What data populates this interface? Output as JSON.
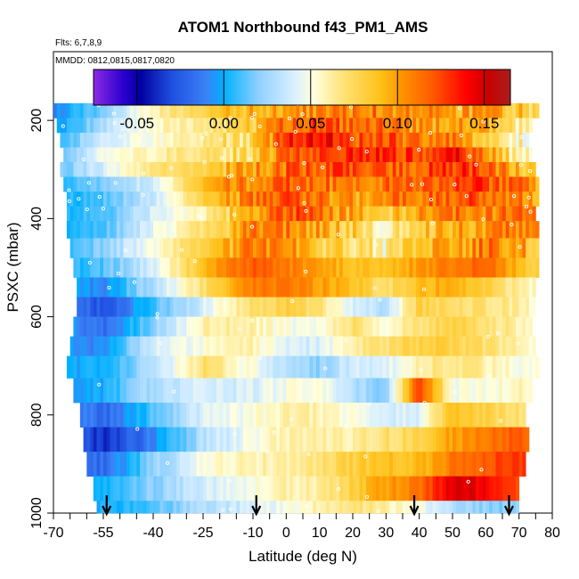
{
  "chart_data": {
    "type": "heatmap",
    "title": "ATOM1 Northbound f43_PM1_AMS",
    "flights_label": "Flts: 6,7,8,9",
    "dates_label": "MMDD: 0812,0815,0817,0820",
    "xlabel": "Latitude (deg N)",
    "ylabel": "PSXC (mbar)",
    "xlim": [
      -70,
      80
    ],
    "ylim": [
      1000,
      60
    ],
    "x_tick_labels": [
      "-70",
      "-55",
      "-40",
      "-25",
      "-10",
      "0",
      "10",
      "20",
      "30",
      "40",
      "50",
      "60",
      "70",
      "80"
    ],
    "x_tick_values": [
      -70,
      -55,
      -40,
      -25,
      -10,
      0,
      10,
      20,
      30,
      40,
      50,
      60,
      70,
      80
    ],
    "x_minor_ticks": [
      -65,
      -60,
      -50,
      -45,
      -35,
      -30,
      -20,
      -15,
      -5,
      5,
      15,
      25,
      35,
      45,
      55,
      65,
      75
    ],
    "y_tick_labels": [
      "200",
      "400",
      "600",
      "800",
      "1000"
    ],
    "y_tick_values": [
      200,
      400,
      600,
      800,
      1000
    ],
    "colorbar": {
      "range": [
        -0.075,
        0.165
      ],
      "tick_values": [
        -0.05,
        0.0,
        0.05,
        0.1,
        0.15
      ],
      "tick_labels": [
        "-0.05",
        "0.00",
        "0.05",
        "0.10",
        "0.15"
      ],
      "color_stops": [
        {
          "v": -0.075,
          "c": "#8b2be2"
        },
        {
          "v": -0.058,
          "c": "#2b00d0"
        },
        {
          "v": -0.048,
          "c": "#0000a0"
        },
        {
          "v": -0.03,
          "c": "#1f4fe0"
        },
        {
          "v": -0.01,
          "c": "#3b82f6"
        },
        {
          "v": 0.0,
          "c": "#00b0ff"
        },
        {
          "v": 0.02,
          "c": "#8fd0ff"
        },
        {
          "v": 0.04,
          "c": "#d8efff"
        },
        {
          "v": 0.052,
          "c": "#ffffdd"
        },
        {
          "v": 0.07,
          "c": "#ffe070"
        },
        {
          "v": 0.09,
          "c": "#ffc21a"
        },
        {
          "v": 0.102,
          "c": "#ff9500"
        },
        {
          "v": 0.12,
          "c": "#ff5a00"
        },
        {
          "v": 0.14,
          "c": "#ff0000"
        },
        {
          "v": 0.152,
          "c": "#c80000"
        },
        {
          "v": 0.165,
          "c": "#aa1e1e"
        }
      ]
    },
    "pressure_levels": [
      180,
      210,
      240,
      270,
      300,
      330,
      360,
      390,
      420,
      460,
      500,
      540,
      580,
      620,
      660,
      700,
      750,
      800,
      850,
      900,
      950,
      1000
    ],
    "left_edge_lat": [
      -70,
      -69,
      -68,
      -67,
      -68,
      -67,
      -66,
      -66,
      -66,
      -65,
      -64,
      -63,
      -63,
      -64,
      -65,
      -66,
      -64,
      -62,
      -61,
      -60,
      -58,
      -57
    ],
    "right_edge_lat": [
      76,
      74,
      73,
      74,
      75,
      76,
      76,
      75,
      76,
      76,
      76,
      75,
      75,
      74,
      75,
      76,
      74,
      72,
      73,
      72,
      70,
      70
    ],
    "profile_markers_lat": [
      -54,
      -9,
      38.5,
      67
    ],
    "anchor_lat": [
      -70,
      -55,
      -40,
      -25,
      -10,
      0,
      10,
      20,
      30,
      40,
      50,
      60,
      70,
      80
    ],
    "values_by_level": [
      [
        -0.01,
        0.02,
        0.06,
        0.08,
        0.09,
        0.1,
        0.105,
        0.11,
        0.11,
        0.105,
        0.1,
        0.095,
        0.085,
        0.07
      ],
      [
        -0.01,
        0.03,
        0.055,
        0.065,
        0.08,
        0.115,
        0.125,
        0.11,
        0.11,
        0.1,
        0.1,
        0.09,
        0.06,
        0.05
      ],
      [
        0.0,
        0.04,
        0.05,
        0.065,
        0.075,
        0.13,
        0.145,
        0.12,
        0.12,
        0.11,
        0.105,
        0.085,
        0.06,
        0.05
      ],
      [
        0.0,
        0.05,
        0.06,
        0.07,
        0.08,
        0.12,
        0.13,
        0.13,
        0.13,
        0.125,
        0.14,
        0.1,
        0.06,
        0.05
      ],
      [
        0.01,
        0.04,
        0.07,
        0.08,
        0.1,
        0.115,
        0.125,
        0.12,
        0.115,
        0.12,
        0.13,
        0.12,
        0.09,
        0.06
      ],
      [
        0.0,
        0.02,
        0.04,
        0.09,
        0.11,
        0.12,
        0.115,
        0.105,
        0.11,
        0.12,
        0.125,
        0.125,
        0.11,
        0.08
      ],
      [
        0.0,
        0.01,
        0.035,
        0.08,
        0.11,
        0.12,
        0.11,
        0.1,
        0.105,
        0.115,
        0.12,
        0.12,
        0.11,
        0.08
      ],
      [
        0.0,
        0.01,
        0.04,
        0.06,
        0.1,
        0.12,
        0.115,
        0.095,
        0.08,
        0.1,
        0.11,
        0.11,
        0.11,
        0.09
      ],
      [
        0.0,
        0.01,
        0.045,
        0.07,
        0.105,
        0.11,
        0.1,
        0.08,
        0.06,
        0.085,
        0.095,
        0.105,
        0.11,
        0.09
      ],
      [
        0.0,
        0.02,
        0.05,
        0.08,
        0.11,
        0.1,
        0.085,
        0.07,
        0.06,
        0.085,
        0.095,
        0.11,
        0.1,
        0.08
      ],
      [
        0.0,
        0.01,
        0.04,
        0.09,
        0.12,
        0.11,
        0.1,
        0.09,
        0.09,
        0.1,
        0.11,
        0.12,
        0.09,
        0.07
      ],
      [
        0.0,
        -0.01,
        0.03,
        0.07,
        0.11,
        0.11,
        0.1,
        0.09,
        0.07,
        0.09,
        0.1,
        0.08,
        0.06,
        0.05
      ],
      [
        0.0,
        -0.03,
        0.01,
        0.04,
        0.07,
        0.08,
        0.07,
        0.04,
        0.03,
        0.08,
        0.07,
        0.07,
        0.06,
        0.05
      ],
      [
        0.0,
        -0.02,
        0.02,
        0.06,
        0.06,
        0.05,
        0.05,
        0.07,
        0.05,
        0.07,
        0.08,
        0.07,
        0.06,
        0.05
      ],
      [
        0.0,
        -0.01,
        0.04,
        0.05,
        0.06,
        0.04,
        0.04,
        0.06,
        0.07,
        0.08,
        0.08,
        0.07,
        0.06,
        0.05
      ],
      [
        0.0,
        0.0,
        0.03,
        0.07,
        0.05,
        0.03,
        0.02,
        0.04,
        0.04,
        0.06,
        0.07,
        0.06,
        0.05,
        0.05
      ],
      [
        0.0,
        0.0,
        0.03,
        0.04,
        0.04,
        0.05,
        0.05,
        0.03,
        0.02,
        0.13,
        0.05,
        0.05,
        0.06,
        0.05
      ],
      [
        0.0,
        -0.02,
        0.01,
        0.04,
        0.05,
        0.06,
        0.06,
        0.05,
        0.04,
        0.04,
        0.09,
        0.08,
        0.07,
        0.06
      ],
      [
        0.0,
        -0.04,
        -0.01,
        0.03,
        0.05,
        0.06,
        0.06,
        0.06,
        0.07,
        0.08,
        0.1,
        0.11,
        0.12,
        0.1
      ],
      [
        0.0,
        -0.02,
        0.02,
        0.05,
        0.06,
        0.06,
        0.07,
        0.08,
        0.09,
        0.09,
        0.11,
        0.12,
        0.13,
        0.1
      ],
      [
        0.0,
        0.0,
        0.02,
        0.04,
        0.05,
        0.06,
        0.06,
        0.08,
        0.1,
        0.11,
        0.15,
        0.14,
        0.12,
        0.1
      ],
      [
        0.0,
        0.0,
        0.01,
        0.03,
        0.04,
        0.05,
        0.06,
        0.07,
        0.06,
        0.05,
        0.03,
        0.02,
        0.02,
        0.02
      ]
    ]
  }
}
